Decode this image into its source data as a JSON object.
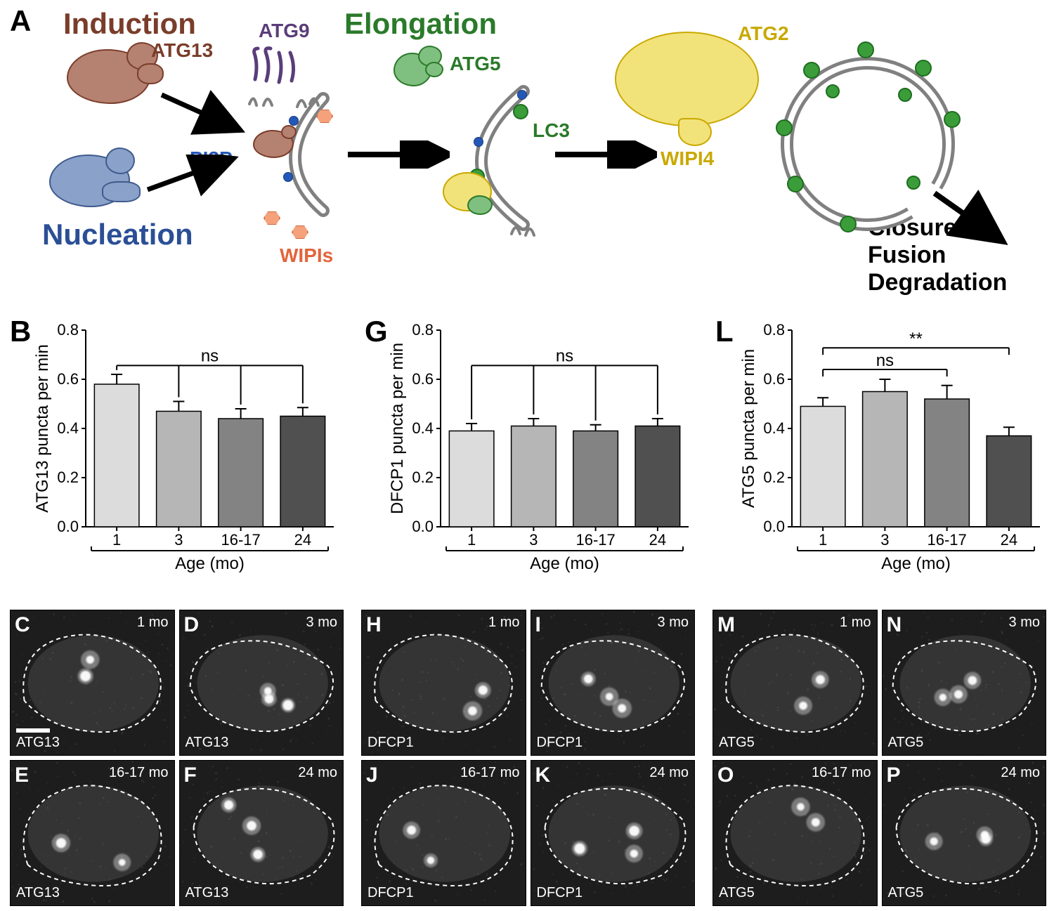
{
  "panelA": {
    "letter": "A",
    "labels": {
      "induction": "Induction",
      "nucleation": "Nucleation",
      "elongation": "Elongation",
      "closure": "Closure\nFusion\nDegradation",
      "atg13": "ATG13",
      "atg9": "ATG9",
      "atg5": "ATG5",
      "atg2": "ATG2",
      "wipi4": "WIPI4",
      "lc3": "LC3",
      "pi3p": "PI3P",
      "wipis": "WIPIs"
    },
    "colors": {
      "induction": "#7a3d2a",
      "nucleation": "#2a4f95",
      "elongation": "#2a7a2a",
      "atg9": "#5a3d7a",
      "atg2_wipi4": "#c9a900",
      "wipis": "#e2653b",
      "pi3p": "#2458b8",
      "arrow": "#000000"
    }
  },
  "charts": {
    "yticks": [
      0.0,
      0.2,
      0.4,
      0.6,
      0.8
    ],
    "ylim": [
      0,
      0.8
    ],
    "xcategories": [
      "1",
      "3",
      "16-17",
      "24"
    ],
    "xlabel": "Age (mo)",
    "bar_fills": [
      "#dcdcdc",
      "#b6b6b6",
      "#838383",
      "#505050"
    ],
    "axis_color": "#000000",
    "B": {
      "letter": "B",
      "ylabel": "ATG13 puncta per min",
      "values": [
        0.58,
        0.47,
        0.44,
        0.45
      ],
      "errors": [
        0.04,
        0.04,
        0.04,
        0.035
      ],
      "sig": {
        "type": "single_bracket",
        "text": "ns"
      }
    },
    "G": {
      "letter": "G",
      "ylabel": "DFCP1 puncta per min",
      "values": [
        0.39,
        0.41,
        0.39,
        0.41
      ],
      "errors": [
        0.03,
        0.03,
        0.025,
        0.03
      ],
      "sig": {
        "type": "single_bracket",
        "text": "ns"
      }
    },
    "L": {
      "letter": "L",
      "ylabel": "ATG5 puncta per min",
      "values": [
        0.49,
        0.55,
        0.52,
        0.37
      ],
      "errors": [
        0.035,
        0.05,
        0.055,
        0.035
      ],
      "sig": {
        "type": "nested",
        "brackets": [
          {
            "from": 0,
            "to": 2,
            "text": "ns",
            "level": 0
          },
          {
            "from": 0,
            "to": 3,
            "text": "**",
            "level": 1
          }
        ]
      }
    }
  },
  "micrographs": {
    "groups": [
      {
        "marker": "ATG13",
        "panels": [
          "C",
          "D",
          "E",
          "F"
        ],
        "ages": [
          "1 mo",
          "3 mo",
          "16-17 mo",
          "24 mo"
        ],
        "scalebar_panel": "C"
      },
      {
        "marker": "DFCP1",
        "panels": [
          "H",
          "I",
          "J",
          "K"
        ],
        "ages": [
          "1 mo",
          "3 mo",
          "16-17 mo",
          "24 mo"
        ]
      },
      {
        "marker": "ATG5",
        "panels": [
          "M",
          "N",
          "O",
          "P"
        ],
        "ages": [
          "1 mo",
          "3 mo",
          "16-17 mo",
          "24 mo"
        ]
      }
    ],
    "colors": {
      "bg": "#1d1d1d",
      "outline": "#ffffff",
      "text": "#ffffff"
    }
  }
}
